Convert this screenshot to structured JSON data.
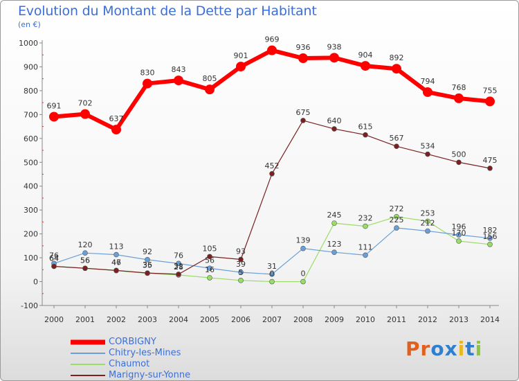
{
  "chart_data": {
    "type": "line",
    "title": "Evolution du Montant de la Dette par Habitant",
    "subtitle": "(en €)",
    "categories": [
      "2000",
      "2001",
      "2002",
      "2003",
      "2004",
      "2005",
      "2006",
      "2007",
      "2008",
      "2009",
      "2010",
      "2011",
      "2012",
      "2013",
      "2014"
    ],
    "ylim": [
      -100,
      1000
    ],
    "yticks": [
      -100,
      0,
      100,
      200,
      300,
      400,
      500,
      600,
      700,
      800,
      900,
      1000
    ],
    "grid": false,
    "legend_position": "bottom-left",
    "series": [
      {
        "name": "CORBIGNY",
        "color": "#ff0000",
        "values": [
          691,
          702,
          637,
          830,
          843,
          805,
          901,
          969,
          936,
          938,
          904,
          892,
          794,
          768,
          755
        ]
      },
      {
        "name": "Chitry-les-Mines",
        "color": "#6a9fd8",
        "values": [
          76,
          120,
          113,
          92,
          76,
          56,
          39,
          31,
          139,
          123,
          111,
          225,
          212,
          196,
          182
        ]
      },
      {
        "name": "Chaumot",
        "color": "#99dd66",
        "values": [
          64,
          56,
          46,
          35,
          28,
          16,
          5,
          0,
          0,
          245,
          232,
          272,
          253,
          170,
          156
        ]
      },
      {
        "name": "Marigny-sur-Yonne",
        "color": "#7a2020",
        "values": [
          64,
          56,
          47,
          36,
          31,
          105,
          93,
          452,
          675,
          640,
          615,
          567,
          534,
          500,
          475
        ]
      }
    ]
  },
  "logo": {
    "text": "Proxiti",
    "letters": [
      "P",
      "r",
      "o",
      "x",
      "i",
      "t",
      "i"
    ],
    "colors": [
      "#e06020",
      "#e06020",
      "#2f7fd0",
      "#2f7fd0",
      "#e8b820",
      "#2f7fd0",
      "#8cc63f"
    ]
  }
}
